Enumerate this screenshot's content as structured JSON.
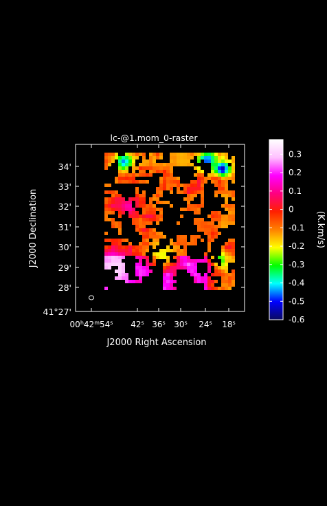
{
  "chart_data": {
    "type": "heatmap",
    "title": "lc-@1.mom_0-raster",
    "xlabel": "J2000 Right Ascension",
    "ylabel": "J2000 Declination",
    "colorbar_label": "(K.km/s)",
    "x_ticks": [
      "00h42m54s",
      "42s",
      "36s",
      "30s",
      "24s",
      "18s"
    ],
    "y_ticks": [
      "41°27'",
      "28'",
      "29'",
      "30'",
      "31'",
      "32'",
      "33'",
      "34'"
    ],
    "colorbar_ticks": [
      "0.3",
      "0.2",
      "0.1",
      "0",
      "-0.1",
      "-0.2",
      "-0.3",
      "-0.4",
      "-0.5",
      "-0.6"
    ],
    "colorbar_range": [
      -0.6,
      0.38
    ],
    "colormap": [
      "#0a0a60",
      "#0000ff",
      "#00ffff",
      "#00ff00",
      "#ffff00",
      "#ff8000",
      "#ff2000",
      "#ff0080",
      "#ff00ff",
      "#ffc0ff",
      "#ffffff"
    ],
    "grid": false,
    "blobs": [
      {
        "ra": "00h42m49s",
        "dec": "41°34.1'",
        "value": -0.45
      },
      {
        "ra": "00h42m22s",
        "dec": "41°34.2'",
        "value": -0.5
      },
      {
        "ra": "00h42m17s",
        "dec": "41°33.8'",
        "value": -0.55
      },
      {
        "ra": "00h42m20s",
        "dec": "41°29.4'",
        "value": -0.35
      },
      {
        "ra": "00h42m53s",
        "dec": "41°29.0'",
        "value": 0.32
      },
      {
        "ra": "00h42m45s",
        "dec": "41°29.0'",
        "value": 0.25
      },
      {
        "ra": "00h42m38s",
        "dec": "41°30.0'",
        "value": -0.22
      },
      {
        "ra": "00h42m30s",
        "dec": "41°31.0'",
        "value": -0.1
      },
      {
        "ra": "00h42m47s",
        "dec": "41°32.3'",
        "value": 0.15
      }
    ]
  }
}
